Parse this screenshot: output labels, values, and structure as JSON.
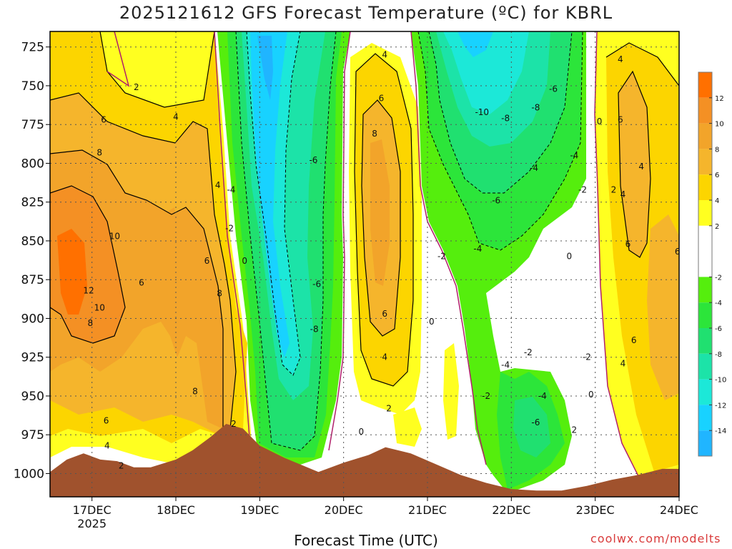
{
  "title": "2025121612 GFS Forecast Temperature (ºC) for KBRL",
  "xlabel": "Forecast Time (UTC)",
  "credit": "coolwx.com/modelts",
  "colors": {
    "terrain": "#a0522d",
    "zero_line": "#b0206a",
    "frame": "#000000",
    "grid": "#555555"
  },
  "colorbar": {
    "ticks": [
      "12",
      "10",
      "8",
      "6",
      "4",
      "2",
      "-2",
      "-4",
      "-6",
      "-8",
      "-10",
      "-12",
      "-14"
    ],
    "bands": [
      {
        "min": 12,
        "max": 14,
        "color": "#ff7000"
      },
      {
        "min": 10,
        "max": 12,
        "color": "#f49024"
      },
      {
        "min": 8,
        "max": 10,
        "color": "#f2a42a"
      },
      {
        "min": 6,
        "max": 8,
        "color": "#f5b52c"
      },
      {
        "min": 4,
        "max": 6,
        "color": "#fcd500"
      },
      {
        "min": 2,
        "max": 4,
        "color": "#ffff20"
      },
      {
        "min": -2,
        "max": 2,
        "color": "#ffffff"
      },
      {
        "min": -4,
        "max": -2,
        "color": "#55ee0d"
      },
      {
        "min": -6,
        "max": -4,
        "color": "#2ce53a"
      },
      {
        "min": -8,
        "max": -6,
        "color": "#20e070"
      },
      {
        "min": -10,
        "max": -8,
        "color": "#1ce3a8"
      },
      {
        "min": -12,
        "max": -10,
        "color": "#1ce8d8"
      },
      {
        "min": -14,
        "max": -12,
        "color": "#18d2ff"
      },
      {
        "min": -16,
        "max": -14,
        "color": "#20b5ff"
      }
    ]
  },
  "chart_data": {
    "type": "heatmap",
    "title": "2025121612 GFS Forecast Temperature (ºC) for KBRL",
    "xlabel": "Forecast Time (UTC)",
    "ylabel": "",
    "y_ticks": [
      725,
      750,
      775,
      800,
      825,
      850,
      875,
      900,
      925,
      950,
      975,
      1000
    ],
    "ylim": [
      1015,
      715
    ],
    "x_tick_labels": [
      "17DEC",
      "18DEC",
      "19DEC",
      "20DEC",
      "21DEC",
      "22DEC",
      "23DEC",
      "24DEC"
    ],
    "x_sublabel": "2025",
    "x_ticks_days": [
      17,
      18,
      19,
      20,
      21,
      22,
      23,
      24
    ],
    "xlim": [
      16.5,
      24.0
    ],
    "grid": true,
    "units": "ºC",
    "contour_labels": [
      {
        "day": 17.53,
        "p": 751,
        "v": "2"
      },
      {
        "day": 17.14,
        "p": 772,
        "v": "6"
      },
      {
        "day": 18.0,
        "p": 770,
        "v": "4"
      },
      {
        "day": 17.09,
        "p": 793,
        "v": "8"
      },
      {
        "day": 17.27,
        "p": 847,
        "v": "10"
      },
      {
        "day": 16.96,
        "p": 882,
        "v": "12"
      },
      {
        "day": 17.09,
        "p": 893,
        "v": "10"
      },
      {
        "day": 16.98,
        "p": 903,
        "v": "8"
      },
      {
        "day": 17.59,
        "p": 877,
        "v": "6"
      },
      {
        "day": 18.37,
        "p": 863,
        "v": "6"
      },
      {
        "day": 18.52,
        "p": 884,
        "v": "8"
      },
      {
        "day": 18.23,
        "p": 947,
        "v": "8"
      },
      {
        "day": 18.5,
        "p": 814,
        "v": "4"
      },
      {
        "day": 18.66,
        "p": 817,
        "v": "-4"
      },
      {
        "day": 18.64,
        "p": 842,
        "v": "-2"
      },
      {
        "day": 18.82,
        "p": 863,
        "v": "0"
      },
      {
        "day": 18.69,
        "p": 968,
        "v": "2"
      },
      {
        "day": 17.17,
        "p": 966,
        "v": "6"
      },
      {
        "day": 17.18,
        "p": 982,
        "v": "4"
      },
      {
        "day": 17.35,
        "p": 995,
        "v": "2"
      },
      {
        "day": 19.64,
        "p": 798,
        "v": "-6"
      },
      {
        "day": 19.68,
        "p": 878,
        "v": "-6"
      },
      {
        "day": 19.65,
        "p": 907,
        "v": "-8"
      },
      {
        "day": 20.49,
        "p": 730,
        "v": "4"
      },
      {
        "day": 20.45,
        "p": 758,
        "v": "6"
      },
      {
        "day": 20.37,
        "p": 781,
        "v": "8"
      },
      {
        "day": 20.49,
        "p": 897,
        "v": "6"
      },
      {
        "day": 20.49,
        "p": 925,
        "v": "4"
      },
      {
        "day": 20.54,
        "p": 958,
        "v": "2"
      },
      {
        "day": 20.21,
        "p": 973,
        "v": "0"
      },
      {
        "day": 21.17,
        "p": 860,
        "v": "-2"
      },
      {
        "day": 21.05,
        "p": 902,
        "v": "0"
      },
      {
        "day": 21.65,
        "p": 767,
        "v": "-10"
      },
      {
        "day": 21.93,
        "p": 771,
        "v": "-8"
      },
      {
        "day": 22.29,
        "p": 764,
        "v": "-8"
      },
      {
        "day": 22.5,
        "p": 752,
        "v": "-6"
      },
      {
        "day": 22.75,
        "p": 795,
        "v": "-4"
      },
      {
        "day": 22.27,
        "p": 803,
        "v": "-4"
      },
      {
        "day": 21.82,
        "p": 824,
        "v": "-6"
      },
      {
        "day": 21.6,
        "p": 855,
        "v": "-4"
      },
      {
        "day": 22.85,
        "p": 817,
        "v": "-2"
      },
      {
        "day": 23.05,
        "p": 773,
        "v": "0"
      },
      {
        "day": 23.22,
        "p": 817,
        "v": "2"
      },
      {
        "day": 23.3,
        "p": 733,
        "v": "4"
      },
      {
        "day": 23.3,
        "p": 772,
        "v": "6"
      },
      {
        "day": 23.55,
        "p": 802,
        "v": "4"
      },
      {
        "day": 23.33,
        "p": 820,
        "v": "4"
      },
      {
        "day": 23.39,
        "p": 852,
        "v": "6"
      },
      {
        "day": 23.98,
        "p": 857,
        "v": "6"
      },
      {
        "day": 22.69,
        "p": 860,
        "v": "0"
      },
      {
        "day": 23.46,
        "p": 914,
        "v": "6"
      },
      {
        "day": 23.33,
        "p": 929,
        "v": "4"
      },
      {
        "day": 22.2,
        "p": 922,
        "v": "-2"
      },
      {
        "day": 21.93,
        "p": 930,
        "v": "-4"
      },
      {
        "day": 21.7,
        "p": 950,
        "v": "-2"
      },
      {
        "day": 22.37,
        "p": 950,
        "v": "-4"
      },
      {
        "day": 22.29,
        "p": 967,
        "v": "-6"
      },
      {
        "day": 22.75,
        "p": 972,
        "v": "2"
      },
      {
        "day": 22.95,
        "p": 949,
        "v": "0"
      },
      {
        "day": 22.9,
        "p": 925,
        "v": "-2"
      }
    ]
  }
}
